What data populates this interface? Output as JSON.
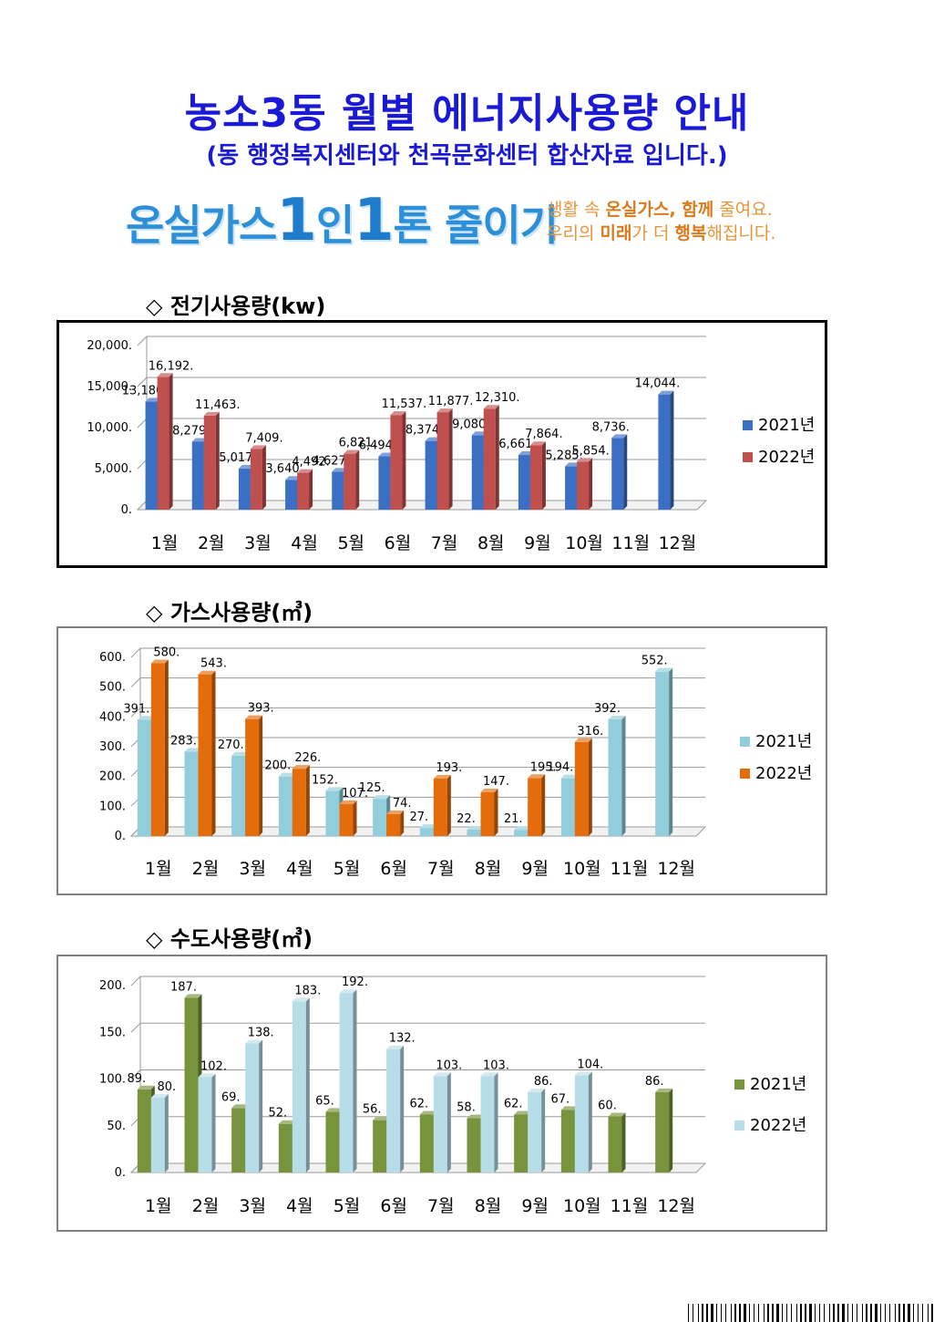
{
  "header": {
    "title": "농소3동 월별 에너지사용량 안내",
    "subtitle": "(동 행정복지센터와 천곡문화센터 합산자료 입니다.)"
  },
  "banner": {
    "main_pre": "온실가스",
    "one_a": "1",
    "main_mid": "인",
    "one_b": "1",
    "main_post": "톤 줄이기",
    "line1_pre": "생활 속 ",
    "line1_bold": "온실가스, 함께",
    "line1_post": " 줄여요.",
    "line2_pre": "우리의 ",
    "line2_bold1": "미래",
    "line2_mid": "가 더 ",
    "line2_bold2": "행복",
    "line2_post": "해집니다."
  },
  "sections": {
    "electric": "◇ 전기사용량(kw)",
    "gas": "◇ 가스사용량(㎥)",
    "water": "◇ 수도사용량(㎥)"
  },
  "colors": {
    "title": "#1a1ad6",
    "elec_2021": "#3a6fc4",
    "elec_2022": "#c0504d",
    "gas_2021": "#92cddc",
    "gas_2022": "#e46c0a",
    "water_2021": "#77933c",
    "water_2022": "#b7dee8"
  },
  "chart_data": [
    {
      "type": "bar",
      "id": "electric",
      "title": "",
      "xlabel": "",
      "ylabel": "",
      "ylim": [
        0,
        20000
      ],
      "yticks": [
        0,
        5000,
        10000,
        15000,
        20000
      ],
      "ytick_labels": [
        "0.",
        "5,000.",
        "10,000.",
        "15,000.",
        "20,000."
      ],
      "categories": [
        "1월",
        "2월",
        "3월",
        "4월",
        "5월",
        "6월",
        "7월",
        "8월",
        "9월",
        "10월",
        "11월",
        "12월"
      ],
      "legend_position": "right",
      "grid": true,
      "series": [
        {
          "name": "2021년",
          "values": [
            13180,
            8279,
            5017,
            3640,
            4627,
            6494,
            8374,
            9080,
            6661,
            5285,
            8736,
            14044
          ],
          "labels": [
            "13,180.",
            "8,279.",
            "5,017.",
            "3,640.",
            "4,627.",
            "6,494.",
            "8,374.",
            "9,080.",
            "6,661.",
            "5,285.",
            "8,736.",
            "14,044."
          ]
        },
        {
          "name": "2022년",
          "values": [
            16192,
            11463,
            7409,
            4492,
            6821,
            11537,
            11877,
            12310,
            7864,
            5854,
            null,
            null
          ],
          "labels": [
            "16,192.",
            "11,463.",
            "7,409.",
            "4,492.",
            "6,821.",
            "11,537.",
            "11,877.",
            "12,310.",
            "7,864.",
            "5,854.",
            "",
            ""
          ]
        }
      ]
    },
    {
      "type": "bar",
      "id": "gas",
      "title": "",
      "xlabel": "",
      "ylabel": "",
      "ylim": [
        0,
        600
      ],
      "yticks": [
        0,
        100,
        200,
        300,
        400,
        500,
        600
      ],
      "ytick_labels": [
        "0.",
        "100.",
        "200.",
        "300.",
        "400.",
        "500.",
        "600."
      ],
      "categories": [
        "1월",
        "2월",
        "3월",
        "4월",
        "5월",
        "6월",
        "7월",
        "8월",
        "9월",
        "10월",
        "11월",
        "12월"
      ],
      "legend_position": "right",
      "grid": true,
      "series": [
        {
          "name": "2021년",
          "values": [
            391,
            283,
            270,
            200,
            152,
            125,
            27,
            22,
            21,
            194,
            392,
            552
          ],
          "labels": [
            "391.",
            "283.",
            "270.",
            "200.",
            "152.",
            "125.",
            "27.",
            "22.",
            "21.",
            "194.",
            "392.",
            "552."
          ]
        },
        {
          "name": "2022년",
          "values": [
            580,
            543,
            393,
            226,
            107,
            74,
            193,
            147,
            195,
            316,
            null,
            null
          ],
          "labels": [
            "580.",
            "543.",
            "393.",
            "226.",
            "107.",
            "74.",
            "193.",
            "147.",
            "195.",
            "316.",
            "",
            ""
          ]
        }
      ]
    },
    {
      "type": "bar",
      "id": "water",
      "title": "",
      "xlabel": "",
      "ylabel": "",
      "ylim": [
        0,
        200
      ],
      "yticks": [
        0,
        50,
        100,
        150,
        200
      ],
      "ytick_labels": [
        "0.",
        "50.",
        "100.",
        "150.",
        "200."
      ],
      "categories": [
        "1월",
        "2월",
        "3월",
        "4월",
        "5월",
        "6월",
        "7월",
        "8월",
        "9월",
        "10월",
        "11월",
        "12월"
      ],
      "legend_position": "right",
      "grid": true,
      "series": [
        {
          "name": "2021년",
          "values": [
            89,
            187,
            69,
            52,
            65,
            56,
            62,
            58,
            62,
            67,
            60,
            86
          ],
          "labels": [
            "89.",
            "187.",
            "69.",
            "52.",
            "65.",
            "56.",
            "62.",
            "58.",
            "62.",
            "67.",
            "60.",
            "86."
          ]
        },
        {
          "name": "2022년",
          "values": [
            80,
            102,
            138,
            183,
            192,
            132,
            103,
            103,
            86,
            104,
            null,
            null
          ],
          "labels": [
            "80.",
            "102.",
            "138.",
            "183.",
            "192.",
            "132.",
            "103.",
            "103.",
            "86.",
            "104.",
            "",
            ""
          ]
        }
      ]
    }
  ]
}
